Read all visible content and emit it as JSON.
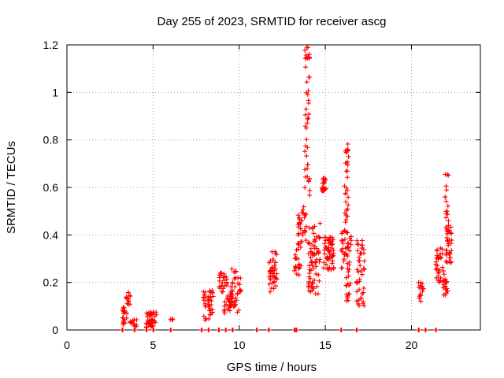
{
  "chart_data": {
    "type": "scatter",
    "title": "Day 255 of 2023, SRMTID for receiver ascg",
    "xlabel": "GPS time / hours",
    "ylabel": "SRMTID / TECUs",
    "xlim": [
      0,
      24
    ],
    "ylim": [
      0,
      1.2
    ],
    "x_ticks": [
      0,
      5,
      10,
      15,
      20
    ],
    "x_tick_labels": [
      "0",
      "5",
      "10",
      "15",
      "20"
    ],
    "y_ticks": [
      0,
      0.2,
      0.4,
      0.6,
      0.8,
      1.0,
      1.2
    ],
    "y_tick_labels": [
      "0",
      "0.2",
      "0.4",
      "0.6",
      "0.8",
      "1",
      "1.2"
    ],
    "grid": true,
    "marker": "+",
    "color": "#ff0000",
    "series": [
      {
        "name": "SRMTID",
        "clusters": [
          {
            "x_start": 3.2,
            "x_end": 3.5,
            "y_min": 0.02,
            "y_max": 0.1,
            "count": 18
          },
          {
            "x_start": 3.45,
            "x_end": 3.75,
            "y_min": 0.1,
            "y_max": 0.16,
            "count": 14
          },
          {
            "x_start": 3.6,
            "x_end": 4.1,
            "y_min": 0.01,
            "y_max": 0.05,
            "count": 12
          },
          {
            "x_start": 4.6,
            "x_end": 5.2,
            "y_min": 0.01,
            "y_max": 0.08,
            "count": 40
          },
          {
            "x_start": 6.0,
            "x_end": 6.15,
            "y_min": 0.04,
            "y_max": 0.05,
            "count": 4
          },
          {
            "x_start": 7.9,
            "x_end": 8.5,
            "y_min": 0.04,
            "y_max": 0.17,
            "count": 40
          },
          {
            "x_start": 8.8,
            "x_end": 9.3,
            "y_min": 0.15,
            "y_max": 0.24,
            "count": 25
          },
          {
            "x_start": 9.1,
            "x_end": 9.5,
            "y_min": 0.07,
            "y_max": 0.15,
            "count": 20
          },
          {
            "x_start": 9.5,
            "x_end": 10.1,
            "y_min": 0.07,
            "y_max": 0.26,
            "count": 45
          },
          {
            "x_start": 11.7,
            "x_end": 12.2,
            "y_min": 0.16,
            "y_max": 0.33,
            "count": 40
          },
          {
            "x_start": 13.2,
            "x_end": 13.6,
            "y_min": 0.23,
            "y_max": 0.35,
            "count": 20
          },
          {
            "x_start": 13.4,
            "x_end": 13.9,
            "y_min": 0.35,
            "y_max": 0.52,
            "count": 35
          },
          {
            "x_start": 13.8,
            "x_end": 14.1,
            "y_min": 0.55,
            "y_max": 1.19,
            "count": 45
          },
          {
            "x_start": 14.0,
            "x_end": 14.7,
            "y_min": 0.15,
            "y_max": 0.45,
            "count": 70
          },
          {
            "x_start": 14.8,
            "x_end": 15.05,
            "y_min": 0.58,
            "y_max": 0.64,
            "count": 20
          },
          {
            "x_start": 14.9,
            "x_end": 15.5,
            "y_min": 0.25,
            "y_max": 0.4,
            "count": 55
          },
          {
            "x_start": 15.9,
            "x_end": 16.5,
            "y_min": 0.25,
            "y_max": 0.42,
            "count": 40
          },
          {
            "x_start": 16.1,
            "x_end": 16.35,
            "y_min": 0.45,
            "y_max": 0.79,
            "count": 30
          },
          {
            "x_start": 16.2,
            "x_end": 16.5,
            "y_min": 0.12,
            "y_max": 0.25,
            "count": 15
          },
          {
            "x_start": 16.8,
            "x_end": 17.3,
            "y_min": 0.1,
            "y_max": 0.38,
            "count": 45
          },
          {
            "x_start": 20.4,
            "x_end": 20.7,
            "y_min": 0.12,
            "y_max": 0.2,
            "count": 15
          },
          {
            "x_start": 21.4,
            "x_end": 21.9,
            "y_min": 0.2,
            "y_max": 0.35,
            "count": 35
          },
          {
            "x_start": 21.8,
            "x_end": 22.1,
            "y_min": 0.14,
            "y_max": 0.22,
            "count": 18
          },
          {
            "x_start": 21.95,
            "x_end": 22.15,
            "y_min": 0.45,
            "y_max": 0.7,
            "count": 15
          },
          {
            "x_start": 22.0,
            "x_end": 22.4,
            "y_min": 0.28,
            "y_max": 0.44,
            "count": 35
          }
        ],
        "baseline_points": {
          "y": 0,
          "x": [
            3.2,
            3.9,
            4.6,
            5.0,
            6.0,
            7.8,
            8.2,
            8.8,
            9.2,
            9.6,
            11.0,
            11.7,
            13.2,
            13.3,
            15.9,
            16.8,
            20.4,
            20.8,
            21.4
          ]
        }
      }
    ]
  }
}
